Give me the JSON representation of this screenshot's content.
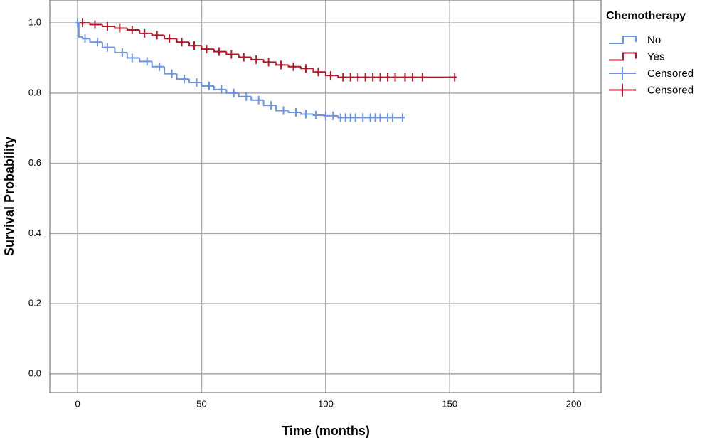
{
  "chart_data": {
    "type": "kaplan-meier",
    "x_label": "Time (months)",
    "y_label": "Survival Probability",
    "legend_title": "Chemotherapy",
    "legend_position": "right",
    "grid": true,
    "xlim": [
      -11.2,
      211
    ],
    "ylim": [
      -0.053,
      1.065
    ],
    "xticks": [
      0,
      50,
      100,
      150,
      200
    ],
    "yticks": [
      {
        "value": 0,
        "label": "0.0"
      },
      {
        "value": 0.2,
        "label": "0.2"
      },
      {
        "value": 0.4,
        "label": "0.4"
      },
      {
        "value": 0.6,
        "label": "0.6"
      },
      {
        "value": 0.8,
        "label": "0.8"
      },
      {
        "value": 1,
        "label": "1.0"
      }
    ],
    "series": [
      {
        "name": "No",
        "color": "#6e94dc",
        "style": "step",
        "x": [
          0,
          0.5,
          2,
          5,
          10,
          15,
          20,
          25,
          30,
          35,
          40,
          45,
          50,
          55,
          60,
          65,
          70,
          75,
          80,
          85,
          90,
          95,
          100,
          105,
          131
        ],
        "values": [
          1.0,
          0.96,
          0.955,
          0.945,
          0.93,
          0.915,
          0.9,
          0.89,
          0.875,
          0.855,
          0.84,
          0.83,
          0.82,
          0.81,
          0.8,
          0.79,
          0.78,
          0.765,
          0.75,
          0.745,
          0.74,
          0.737,
          0.735,
          0.73,
          0.73
        ]
      },
      {
        "name": "Yes",
        "color": "#b0192c",
        "style": "step",
        "x": [
          0,
          5,
          10,
          15,
          20,
          25,
          30,
          35,
          40,
          45,
          50,
          55,
          60,
          65,
          70,
          75,
          80,
          85,
          90,
          95,
          100,
          105,
          152
        ],
        "values": [
          1.0,
          0.995,
          0.99,
          0.985,
          0.98,
          0.97,
          0.965,
          0.955,
          0.945,
          0.935,
          0.925,
          0.918,
          0.91,
          0.902,
          0.895,
          0.888,
          0.88,
          0.875,
          0.87,
          0.86,
          0.85,
          0.845,
          0.845
        ]
      },
      {
        "name": "Censored",
        "color": "#6e94dc",
        "style": "censor",
        "x": [
          0,
          3,
          8,
          12,
          18,
          22,
          28,
          33,
          38,
          43,
          48,
          53,
          58,
          63,
          68,
          73,
          78,
          83,
          88,
          92,
          96,
          100,
          103,
          106,
          108,
          110,
          112,
          115,
          118,
          120,
          122,
          125,
          127,
          131
        ],
        "values": [
          1.0,
          0.955,
          0.945,
          0.93,
          0.915,
          0.9,
          0.89,
          0.875,
          0.855,
          0.84,
          0.83,
          0.82,
          0.81,
          0.8,
          0.79,
          0.78,
          0.765,
          0.75,
          0.745,
          0.74,
          0.737,
          0.735,
          0.735,
          0.73,
          0.73,
          0.73,
          0.73,
          0.73,
          0.73,
          0.73,
          0.73,
          0.73,
          0.73,
          0.73
        ]
      },
      {
        "name": "Censored",
        "color": "#b0192c",
        "style": "censor",
        "x": [
          2,
          7,
          12,
          17,
          22,
          27,
          32,
          37,
          42,
          47,
          52,
          57,
          62,
          67,
          72,
          77,
          82,
          87,
          92,
          97,
          102,
          107,
          110,
          113,
          116,
          119,
          122,
          125,
          128,
          132,
          135,
          139,
          152
        ],
        "values": [
          1.0,
          0.995,
          0.99,
          0.985,
          0.98,
          0.97,
          0.965,
          0.955,
          0.945,
          0.935,
          0.925,
          0.918,
          0.91,
          0.902,
          0.895,
          0.888,
          0.88,
          0.875,
          0.87,
          0.86,
          0.85,
          0.845,
          0.845,
          0.845,
          0.845,
          0.845,
          0.845,
          0.845,
          0.845,
          0.845,
          0.845,
          0.845,
          0.845
        ]
      }
    ]
  }
}
